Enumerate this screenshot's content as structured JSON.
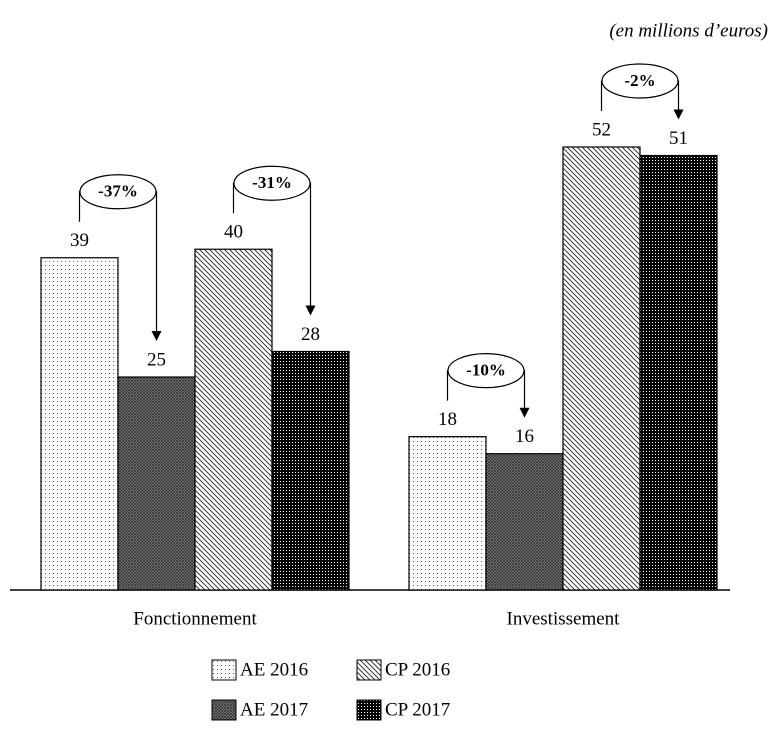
{
  "chart_data": {
    "type": "bar",
    "subtitle": "(en millions d’euros)",
    "categories": [
      "Fonctionnement",
      "Investissement"
    ],
    "series": [
      {
        "name": "AE 2016",
        "color": "#555555",
        "values": [
          39,
          18
        ]
      },
      {
        "name": "AE 2017",
        "color": "#333333",
        "values": [
          25,
          16
        ]
      },
      {
        "name": "CP 2016",
        "color": "#222222",
        "values": [
          40,
          52
        ]
      },
      {
        "name": "CP 2017",
        "color": "#000000",
        "values": [
          28,
          51
        ]
      }
    ],
    "annotations": [
      "-37%",
      "-31%",
      "-10%",
      "-2%"
    ]
  }
}
